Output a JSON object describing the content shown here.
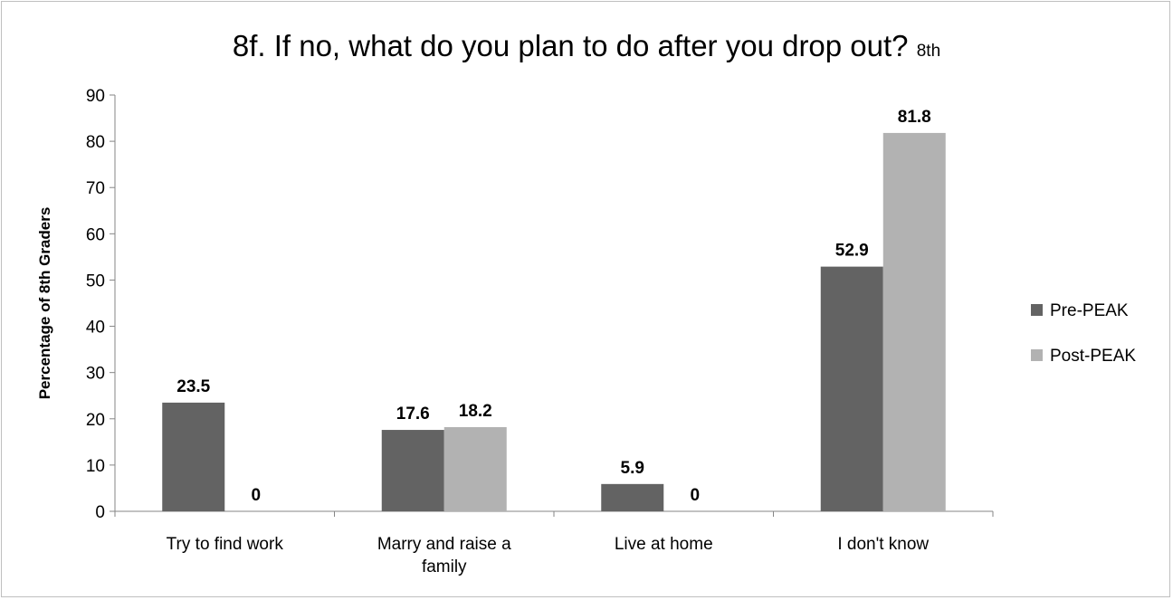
{
  "chart_data": {
    "type": "bar",
    "title": "8f. If no, what do you plan to do after you drop out?",
    "title_suffix": "8th",
    "ylabel": "Percentage of 8th Graders",
    "xlabel": "",
    "ylim": [
      0,
      90
    ],
    "yticks": [
      0,
      10,
      20,
      30,
      40,
      50,
      60,
      70,
      80,
      90
    ],
    "categories": [
      [
        "Try to find work"
      ],
      [
        "Marry and raise a",
        "family"
      ],
      [
        "Live at home"
      ],
      [
        "I don't know"
      ]
    ],
    "series": [
      {
        "name": "Pre-PEAK",
        "color": "#636363",
        "values": [
          23.5,
          17.6,
          5.9,
          52.9
        ]
      },
      {
        "name": "Post-PEAK",
        "color": "#b2b2b2",
        "values": [
          0,
          18.2,
          0,
          81.8
        ]
      }
    ],
    "data_labels": true,
    "legend_position": "right",
    "grid": false
  }
}
